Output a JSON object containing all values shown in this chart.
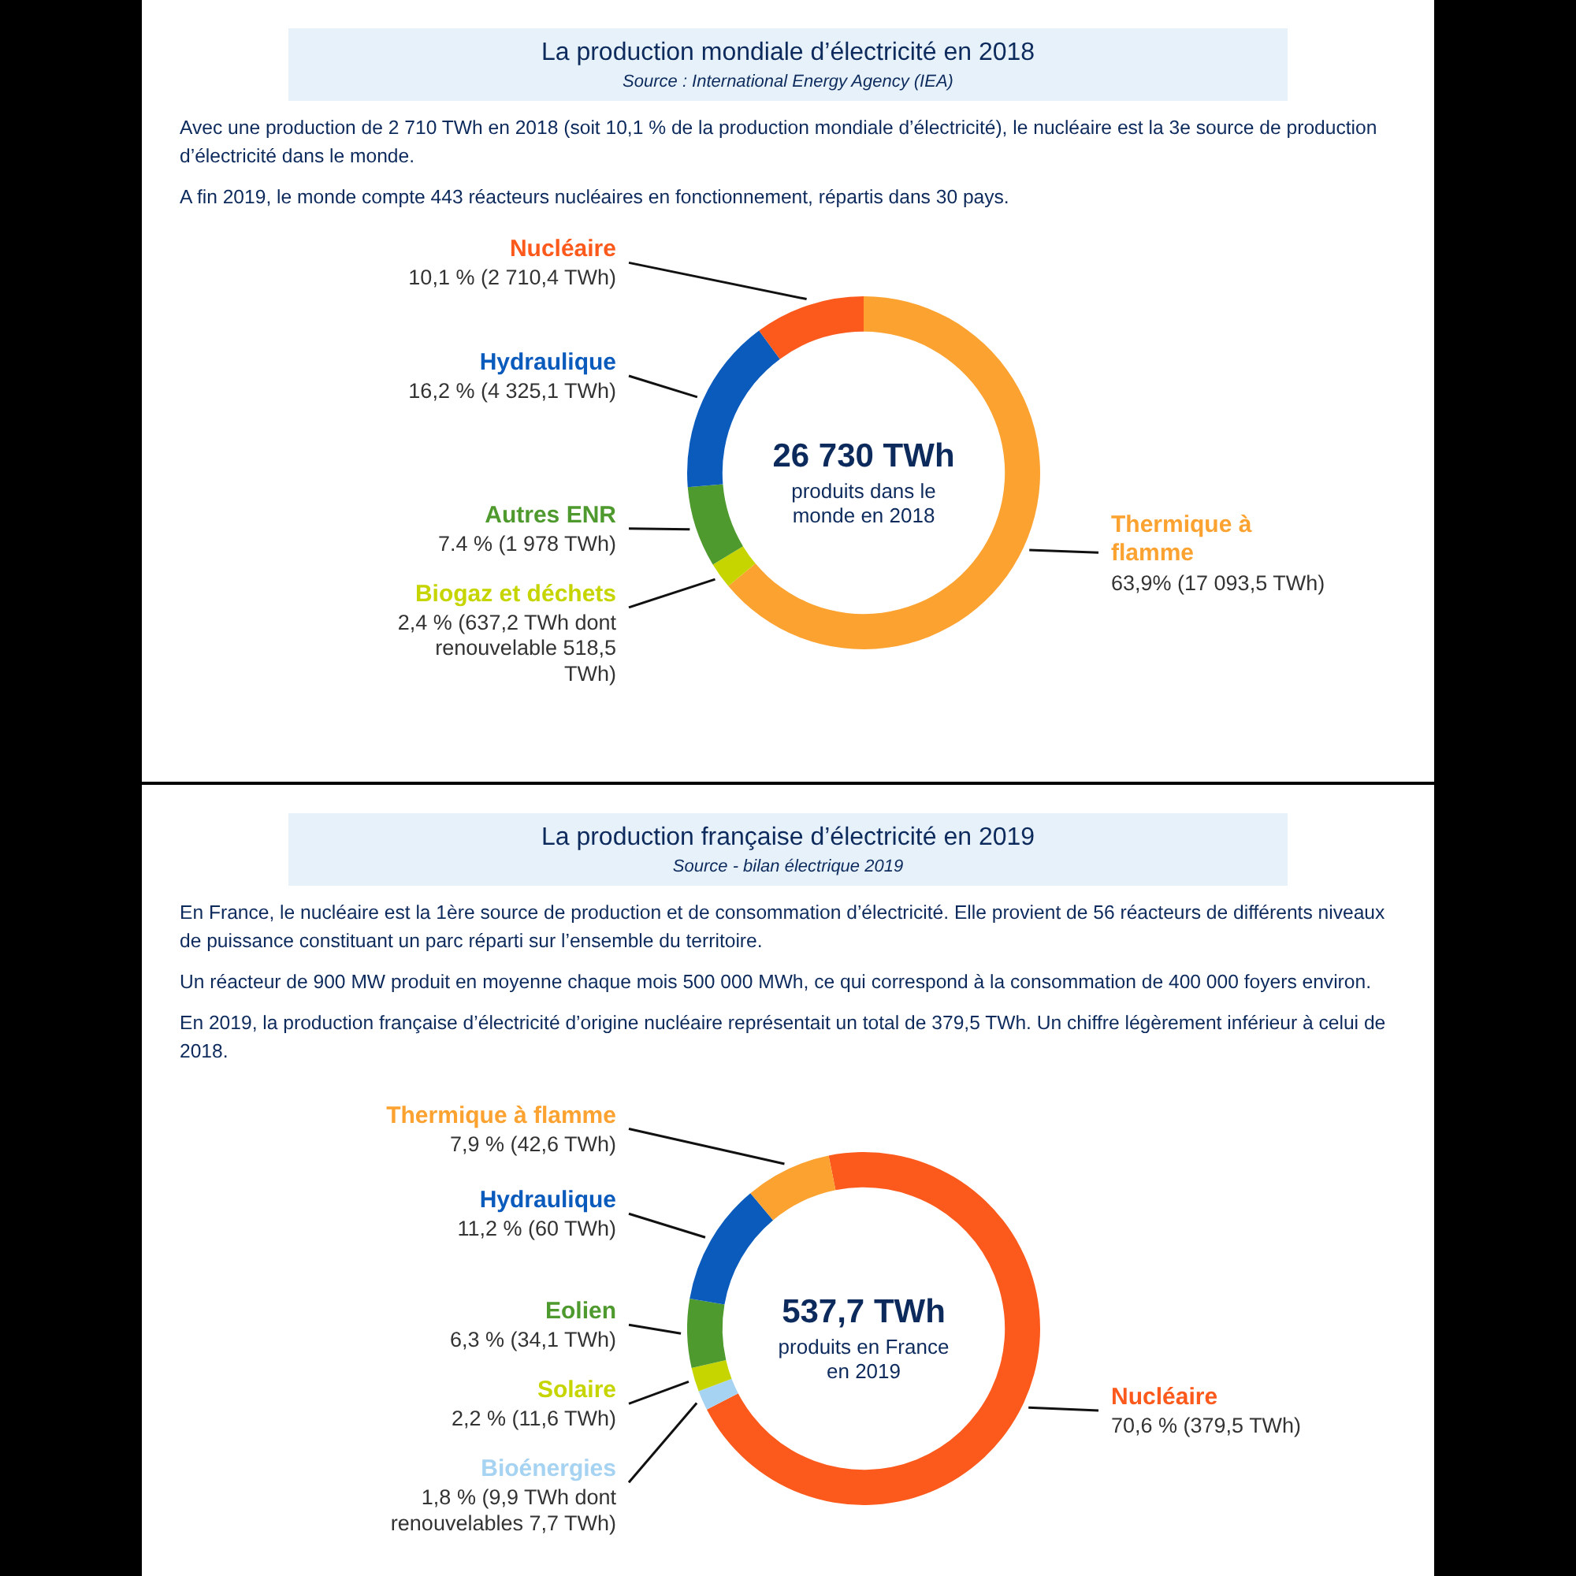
{
  "chart_data": [
    {
      "type": "donut",
      "title": "La production mondiale d’électricité en 2018",
      "subtitle": "Source : International Energy Agency (IEA)",
      "categories": [
        "Thermique à flamme",
        "Biogaz et déchets",
        "Autres ENR",
        "Hydraulique",
        "Nucléaire"
      ],
      "values": [
        63.9,
        2.4,
        7.4,
        16.2,
        10.1
      ],
      "colors": [
        "#fba230",
        "#c6d500",
        "#4f9a2e",
        "#0b5bbd",
        "#fc5a1c"
      ],
      "value_labels": [
        "63,9%  (17 093,5 TWh)",
        "2,4 %  (637,2 TWh dont renouvelable 518,5 TWh)",
        "7.4 % (1 978 TWh)",
        "16,2 % (4 325,1 TWh)",
        "10,1 % (2 710,4 TWh)"
      ],
      "annotations": [
        "Avec une production de 2 710 TWh en 2018 (soit 10,1 % de la production mondiale d’électricité), le nucléaire est la 3e source de production d’électricité dans le monde.",
        "A fin 2019, le monde compte 443 réacteurs nucléaires en fonctionnement, répartis dans 30 pays.",
        "26 730 TWh",
        "produits dans le monde en 2018"
      ]
    },
    {
      "type": "donut",
      "title": "La production française d’électricité en 2019",
      "subtitle": "Source - bilan électrique 2019",
      "categories": [
        "Nucléaire",
        "Bioénergies",
        "Solaire",
        "Eolien",
        "Hydraulique",
        "Thermique à flamme"
      ],
      "values": [
        70.6,
        1.8,
        2.2,
        6.3,
        11.2,
        7.9
      ],
      "colors": [
        "#fc5a1c",
        "#a6d3f2",
        "#c6d500",
        "#4f9a2e",
        "#0b5bbd",
        "#fba230"
      ],
      "value_labels": [
        "70,6 % (379,5 TWh)",
        "1,8 % (9,9 TWh dont renouvelables 7,7 TWh)",
        "2,2 % (11,6 TWh)",
        "6,3 % (34,1 TWh)",
        "11,2 % (60 TWh)",
        "7,9 % (42,6 TWh)"
      ],
      "annotations": [
        "En France, le nucléaire est la 1ère source de production et de consommation d’électricité. Elle provient de 56 réacteurs de différents niveaux de puissance constituant un parc réparti sur l’ensemble du territoire.",
        "Un réacteur de 900 MW produit en moyenne chaque mois 500 000 MWh, ce qui correspond à la consommation de 400 000 foyers environ.",
        "En 2019, la production française d’électricité d’origine nucléaire représentait un total de 379,5 TWh. Un chiffre légèrement inférieur à celui de 2018.",
        "537,7 TWh",
        "produits en France en 2019"
      ]
    }
  ]
}
